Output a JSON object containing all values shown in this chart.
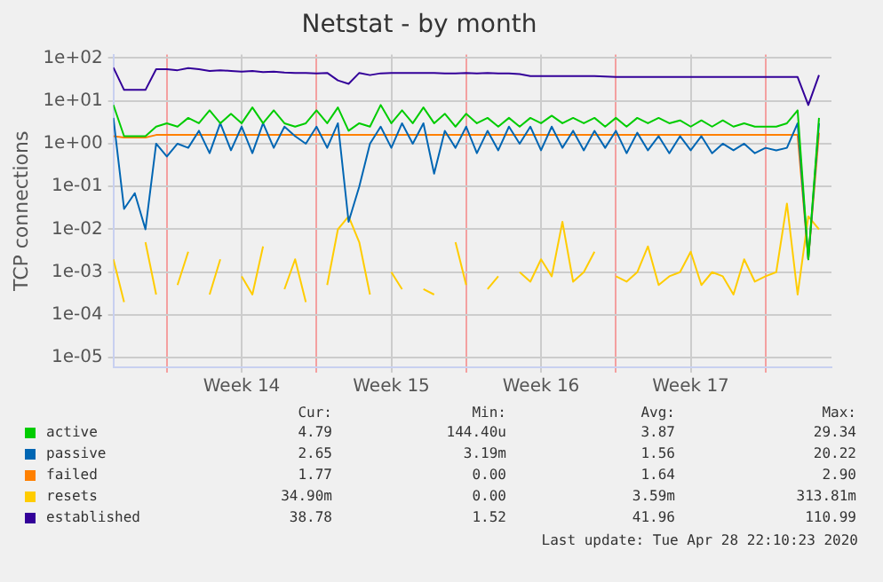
{
  "chart_data": {
    "type": "line",
    "title": "Netstat - by month",
    "ylabel": "TCP connections",
    "log": true,
    "grid": true,
    "legend": "bottom",
    "xlim": [
      "2020-03-27T12:00",
      "2020-04-30T02:00"
    ],
    "xticks": [
      {
        "value": "2020-03-30T00:00",
        "label": null
      },
      {
        "value": "2020-04-02T12:00",
        "label": "Week 14"
      },
      {
        "value": "2020-04-06T00:00",
        "label": null
      },
      {
        "value": "2020-04-09T12:00",
        "label": "Week 15"
      },
      {
        "value": "2020-04-13T00:00",
        "label": null
      },
      {
        "value": "2020-04-16T12:00",
        "label": "Week 16"
      },
      {
        "value": "2020-04-20T00:00",
        "label": null
      },
      {
        "value": "2020-04-23T12:00",
        "label": "Week 17"
      },
      {
        "value": "2020-04-27T00:00",
        "label": null
      }
    ],
    "ylim": [
      6e-06,
      120
    ],
    "yticks": [
      {
        "value": 1e-05,
        "label": "1e-05"
      },
      {
        "value": 0.0001,
        "label": "1e-04"
      },
      {
        "value": 0.001,
        "label": "1e-03"
      },
      {
        "value": 0.01,
        "label": "1e-02"
      },
      {
        "value": 0.1,
        "label": "1e-01"
      },
      {
        "value": 1,
        "label": "1e+00"
      },
      {
        "value": 10,
        "label": "1e+01"
      },
      {
        "value": 100,
        "label": "1e+02"
      }
    ],
    "x": [
      "2020-03-27T12:00",
      "2020-03-28T00:00",
      "2020-03-28T12:00",
      "2020-03-29T00:00",
      "2020-03-29T12:00",
      "2020-03-30T00:00",
      "2020-03-30T12:00",
      "2020-03-31T00:00",
      "2020-03-31T12:00",
      "2020-04-01T00:00",
      "2020-04-01T12:00",
      "2020-04-02T00:00",
      "2020-04-02T12:00",
      "2020-04-03T00:00",
      "2020-04-03T12:00",
      "2020-04-04T00:00",
      "2020-04-04T12:00",
      "2020-04-05T00:00",
      "2020-04-05T12:00",
      "2020-04-06T00:00",
      "2020-04-06T12:00",
      "2020-04-07T00:00",
      "2020-04-07T12:00",
      "2020-04-08T00:00",
      "2020-04-08T12:00",
      "2020-04-09T00:00",
      "2020-04-09T12:00",
      "2020-04-10T00:00",
      "2020-04-10T12:00",
      "2020-04-11T00:00",
      "2020-04-11T12:00",
      "2020-04-12T00:00",
      "2020-04-12T12:00",
      "2020-04-13T00:00",
      "2020-04-13T12:00",
      "2020-04-14T00:00",
      "2020-04-14T12:00",
      "2020-04-15T00:00",
      "2020-04-15T12:00",
      "2020-04-16T00:00",
      "2020-04-16T12:00",
      "2020-04-17T00:00",
      "2020-04-17T12:00",
      "2020-04-18T00:00",
      "2020-04-18T12:00",
      "2020-04-19T00:00",
      "2020-04-19T12:00",
      "2020-04-20T00:00",
      "2020-04-20T12:00",
      "2020-04-21T00:00",
      "2020-04-21T12:00",
      "2020-04-22T00:00",
      "2020-04-22T12:00",
      "2020-04-23T00:00",
      "2020-04-23T12:00",
      "2020-04-24T00:00",
      "2020-04-24T12:00",
      "2020-04-25T00:00",
      "2020-04-25T12:00",
      "2020-04-26T00:00",
      "2020-04-26T12:00",
      "2020-04-27T00:00",
      "2020-04-27T12:00",
      "2020-04-28T00:00",
      "2020-04-28T12:00",
      "2020-04-29T00:00",
      "2020-04-29T12:00"
    ],
    "series": [
      {
        "name": "active",
        "color": "#00cc00",
        "values": [
          8,
          1.5,
          1.5,
          1.5,
          2.5,
          3,
          2.5,
          4,
          3,
          6,
          3,
          5,
          3,
          7,
          3,
          6,
          3,
          2.5,
          3,
          6,
          3,
          7,
          2,
          3,
          2.5,
          8,
          3,
          6,
          3,
          7,
          3,
          5,
          2.5,
          5,
          3,
          4,
          2.5,
          4,
          2.5,
          4,
          3,
          4.5,
          3,
          4,
          3,
          4,
          2.5,
          4,
          2.5,
          4,
          3,
          4,
          3,
          3.5,
          2.5,
          3.5,
          2.5,
          3.5,
          2.5,
          3,
          2.5,
          2.5,
          2.5,
          3,
          6,
          0.002,
          4
        ]
      },
      {
        "name": "passive",
        "color": "#0066b3",
        "values": [
          4,
          0.03,
          0.07,
          0.01,
          1,
          0.5,
          1,
          0.8,
          2,
          0.6,
          3,
          0.7,
          2.5,
          0.6,
          3,
          0.8,
          2.5,
          1.5,
          1,
          2.5,
          0.8,
          3,
          0.015,
          0.1,
          1,
          2.5,
          0.8,
          3,
          1,
          3,
          0.2,
          2,
          0.8,
          2.5,
          0.6,
          2,
          0.7,
          2.5,
          1,
          2.5,
          0.7,
          2.5,
          0.8,
          2,
          0.7,
          2,
          0.8,
          2,
          0.6,
          1.8,
          0.7,
          1.5,
          0.6,
          1.5,
          0.7,
          1.5,
          0.6,
          1,
          0.7,
          1,
          0.6,
          0.8,
          0.7,
          0.8,
          3,
          0.002,
          3
        ]
      },
      {
        "name": "failed",
        "color": "#ff8000",
        "values": [
          1.5,
          1.4,
          1.4,
          1.4,
          1.6,
          1.6,
          1.6,
          1.6,
          1.6,
          1.6,
          1.6,
          1.6,
          1.6,
          1.6,
          1.6,
          1.6,
          1.6,
          1.6,
          1.6,
          1.6,
          1.6,
          1.6,
          1.6,
          1.6,
          1.6,
          1.6,
          1.6,
          1.6,
          1.6,
          1.6,
          1.6,
          1.6,
          1.6,
          1.6,
          1.6,
          1.6,
          1.6,
          1.6,
          1.6,
          1.6,
          1.6,
          1.6,
          1.6,
          1.6,
          1.6,
          1.6,
          1.6,
          1.6,
          1.6,
          1.6,
          1.6,
          1.6,
          1.6,
          1.6,
          1.6,
          1.6,
          1.6,
          1.6,
          1.6,
          1.6,
          1.6,
          1.6,
          1.6,
          1.6,
          1.6,
          0.002,
          1.8
        ]
      },
      {
        "name": "resets",
        "color": "#ffcc00",
        "values": [
          0.002,
          0.0002,
          null,
          0.005,
          0.0003,
          null,
          0.0005,
          0.003,
          null,
          0.0003,
          0.002,
          null,
          0.0008,
          0.0003,
          0.004,
          null,
          0.0004,
          0.002,
          0.0002,
          null,
          0.0005,
          0.01,
          0.02,
          0.005,
          0.0003,
          null,
          0.001,
          0.0004,
          null,
          0.0004,
          0.0003,
          null,
          0.005,
          0.0005,
          null,
          0.0004,
          0.0008,
          null,
          0.001,
          0.0006,
          0.002,
          0.0008,
          0.015,
          0.0006,
          0.001,
          0.003,
          null,
          0.0008,
          0.0006,
          0.001,
          0.004,
          0.0005,
          0.0008,
          0.001,
          0.003,
          0.0005,
          0.001,
          0.0008,
          0.0003,
          0.002,
          0.0006,
          0.0008,
          0.001,
          0.04,
          0.0003,
          0.02,
          0.01
        ]
      },
      {
        "name": "established",
        "color": "#330099",
        "values": [
          60,
          18,
          18,
          18,
          55,
          55,
          52,
          58,
          55,
          50,
          52,
          50,
          48,
          50,
          47,
          48,
          46,
          45,
          45,
          44,
          45,
          30,
          25,
          45,
          40,
          44,
          45,
          45,
          45,
          45,
          45,
          44,
          44,
          45,
          44,
          45,
          44,
          44,
          42,
          38,
          38,
          38,
          38,
          38,
          38,
          38,
          37,
          36,
          36,
          36,
          36,
          36,
          36,
          36,
          36,
          36,
          36,
          36,
          36,
          36,
          36,
          36,
          36,
          36,
          36,
          8,
          40
        ]
      }
    ],
    "annotations": [
      "Cur:",
      "Min:",
      "Avg:",
      "Max:",
      "4.79",
      "144.40u",
      "3.87",
      "29.34",
      "2.65",
      "3.19m",
      "1.56",
      "20.22",
      "1.77",
      "0.00",
      "1.64",
      "2.90",
      "34.90m",
      "0.00",
      "3.59m",
      "313.81m",
      "38.78",
      "1.52",
      "41.96",
      "110.99",
      "Last update: Tue Apr 28 22:10:23 2020"
    ]
  }
}
